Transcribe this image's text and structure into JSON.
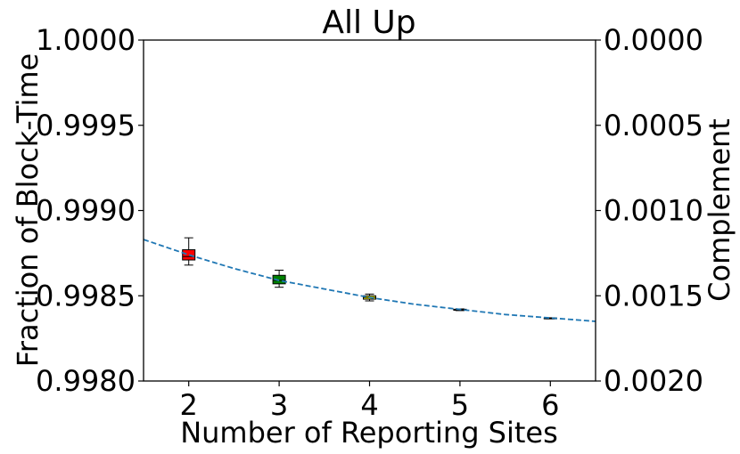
{
  "chart_data": {
    "type": "box",
    "title": "All Up",
    "xlabel": "Number of Reporting Sites",
    "ylabel": "Fraction of Block-Time",
    "ylabel_right": "Complement",
    "xlim": [
      1.5,
      6.5
    ],
    "ylim": [
      0.998,
      1.0
    ],
    "x_ticks": [
      2,
      3,
      4,
      5,
      6
    ],
    "x_tick_labels": [
      "2",
      "3",
      "4",
      "5",
      "6"
    ],
    "y_ticks": [
      0.998,
      0.9985,
      0.999,
      0.9995,
      1.0
    ],
    "y_tick_labels": [
      "0.9980",
      "0.9985",
      "0.9990",
      "0.9995",
      "1.0000"
    ],
    "y2_tick_labels": [
      "0.0020",
      "0.0015",
      "0.0010",
      "0.0005",
      "0.0000"
    ],
    "grid": false,
    "boxes": [
      {
        "x": 2,
        "whisker_low": 0.99868,
        "q1": 0.99871,
        "median": 0.99873,
        "q3": 0.99877,
        "whisker_high": 0.99884,
        "color": "#ff0000"
      },
      {
        "x": 3,
        "whisker_low": 0.99855,
        "q1": 0.99857,
        "median": 0.99859,
        "q3": 0.99862,
        "whisker_high": 0.99865,
        "color": "#008000"
      },
      {
        "x": 4,
        "whisker_low": 0.99847,
        "q1": 0.99848,
        "median": 0.99849,
        "q3": 0.9985,
        "whisker_high": 0.99851,
        "color": "#ffff00"
      },
      {
        "x": 5,
        "whisker_low": 0.998413,
        "q1": 0.998415,
        "median": 0.998418,
        "q3": 0.998421,
        "whisker_high": 0.998423,
        "color": "#ffa500"
      },
      {
        "x": 6,
        "whisker_low": 0.998365,
        "q1": 0.998366,
        "median": 0.998368,
        "q3": 0.99837,
        "whisker_high": 0.998371,
        "color": "#ff0000"
      }
    ],
    "fit_curve": {
      "style": "dashed",
      "color": "#1f77b4",
      "x": [
        1.5,
        2.0,
        2.5,
        3.0,
        3.5,
        4.0,
        4.5,
        5.0,
        5.5,
        6.0,
        6.5
      ],
      "y": [
        0.99883,
        0.99874,
        0.99866,
        0.99859,
        0.99854,
        0.99849,
        0.99845,
        0.99842,
        0.99839,
        0.99837,
        0.99835
      ]
    }
  }
}
